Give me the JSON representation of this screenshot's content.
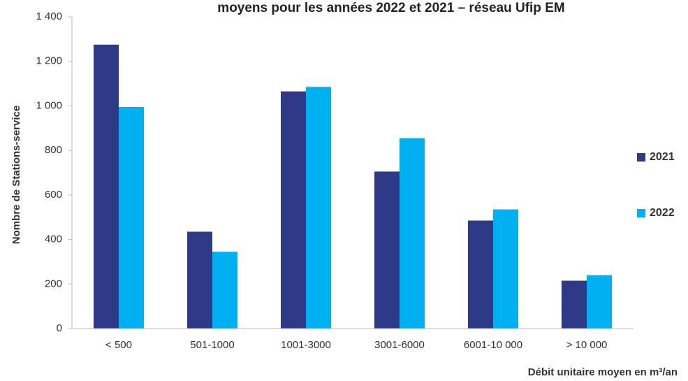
{
  "chart_data": {
    "type": "bar",
    "title": "moyens pour les années 2022 et 2021 – réseau Ufip EM",
    "y_label": "Nombre de Stations-service",
    "x_label": "Débit unitaire moyen en m³/an",
    "categories": [
      "< 500",
      "501-1000",
      "1001-3000",
      "3001-6000",
      "6001-10 000",
      "> 10 000"
    ],
    "series": [
      {
        "name": "2021",
        "color": "#2e3a87",
        "values": [
          1275,
          435,
          1065,
          705,
          485,
          215
        ]
      },
      {
        "name": "2022",
        "color": "#00b0f0",
        "values": [
          995,
          345,
          1085,
          855,
          535,
          240
        ]
      }
    ],
    "ylim": [
      0,
      1400
    ],
    "yticks": [
      0,
      200,
      400,
      600,
      800,
      {
        "value": 1000,
        "label": "1 000"
      },
      {
        "value": 1200,
        "label": "1 200"
      },
      {
        "value": 1400,
        "label": "1 400"
      }
    ],
    "legend": "right"
  }
}
